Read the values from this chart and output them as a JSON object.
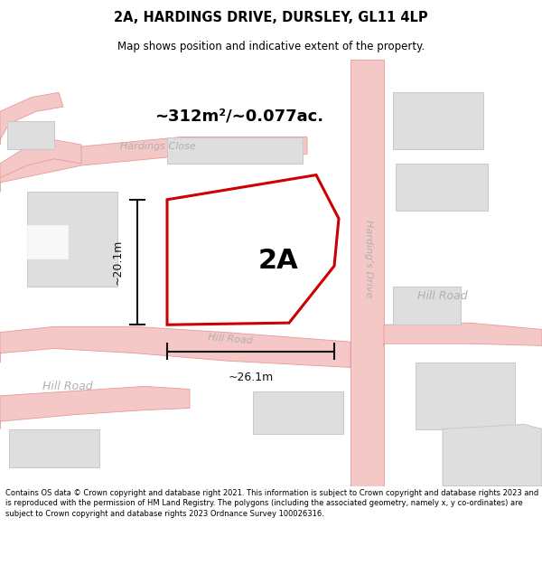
{
  "title": "2A, HARDINGS DRIVE, DURSLEY, GL11 4LP",
  "subtitle": "Map shows position and indicative extent of the property.",
  "footer": "Contains OS data © Crown copyright and database right 2021. This information is subject to Crown copyright and database rights 2023 and is reproduced with the permission of HM Land Registry. The polygons (including the associated geometry, namely x, y co-ordinates) are subject to Crown copyright and database rights 2023 Ordnance Survey 100026316.",
  "property_label": "2A",
  "area_label": "~312m²/~0.077ac.",
  "width_label": "~26.1m",
  "height_label": "~20.1m",
  "road_fill": "#f5c8c8",
  "road_edge": "#e89898",
  "building_fill": "#dedede",
  "building_edge": "#c8c8c8",
  "property_fill": "#ffffff",
  "property_edge": "#cc0000",
  "dim_color": "#111111",
  "street_color": "#b0b0b0",
  "map_bg": "#f8f8f8"
}
